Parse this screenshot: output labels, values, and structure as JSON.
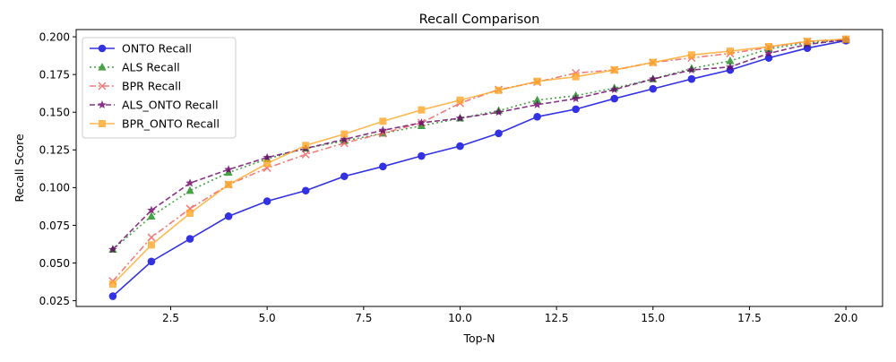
{
  "chart_data": {
    "type": "line",
    "title": "Recall Comparison",
    "xlabel": "Top-N",
    "ylabel": "Recall Score",
    "xlim": [
      0.05,
      20.95
    ],
    "ylim": [
      0.0212,
      0.2048
    ],
    "xticks": [
      2.5,
      5.0,
      7.5,
      10.0,
      12.5,
      15.0,
      17.5,
      20.0
    ],
    "xtick_labels": [
      "2.5",
      "5.0",
      "7.5",
      "10.0",
      "12.5",
      "15.0",
      "17.5",
      "20.0"
    ],
    "yticks": [
      0.025,
      0.05,
      0.075,
      0.1,
      0.125,
      0.15,
      0.175,
      0.2
    ],
    "ytick_labels": [
      "0.025",
      "0.050",
      "0.075",
      "0.100",
      "0.125",
      "0.150",
      "0.175",
      "0.200"
    ],
    "grid": false,
    "legend_position": "top-left",
    "x": [
      1,
      2,
      3,
      4,
      5,
      6,
      7,
      8,
      9,
      10,
      11,
      12,
      13,
      14,
      15,
      16,
      17,
      18,
      19,
      20
    ],
    "series": [
      {
        "name": "ONTO Recall",
        "color": "#0000dd",
        "marker": "circle",
        "line_style": "solid",
        "values": [
          0.028,
          0.051,
          0.066,
          0.081,
          0.091,
          0.098,
          0.1075,
          0.114,
          0.121,
          0.1275,
          0.136,
          0.147,
          0.152,
          0.159,
          0.1655,
          0.172,
          0.178,
          0.186,
          0.1925,
          0.1975
        ]
      },
      {
        "name": "ALS Recall",
        "color": "#1a8a1a",
        "marker": "triangle",
        "line_style": "dotted",
        "values": [
          0.059,
          0.081,
          0.098,
          0.11,
          0.119,
          0.126,
          0.131,
          0.136,
          0.141,
          0.146,
          0.151,
          0.158,
          0.161,
          0.166,
          0.172,
          0.179,
          0.184,
          0.192,
          0.196,
          0.198
        ]
      },
      {
        "name": "BPR Recall",
        "color": "#f05a5a",
        "marker": "x",
        "line_style": "dashdot",
        "values": [
          0.038,
          0.067,
          0.086,
          0.102,
          0.113,
          0.122,
          0.1295,
          0.136,
          0.143,
          0.156,
          0.165,
          0.17,
          0.176,
          0.178,
          0.183,
          0.186,
          0.189,
          0.193,
          0.197,
          0.198
        ]
      },
      {
        "name": "ALS_ONTO Recall",
        "color": "#6a006a",
        "marker": "star",
        "line_style": "dashed",
        "values": [
          0.059,
          0.085,
          0.103,
          0.112,
          0.12,
          0.126,
          0.132,
          0.138,
          0.143,
          0.146,
          0.15,
          0.155,
          0.159,
          0.165,
          0.172,
          0.178,
          0.18,
          0.189,
          0.195,
          0.198
        ]
      },
      {
        "name": "BPR_ONTO Recall",
        "color": "#ffa726",
        "marker": "square",
        "line_style": "solid",
        "values": [
          0.036,
          0.062,
          0.083,
          0.102,
          0.116,
          0.128,
          0.1355,
          0.144,
          0.1515,
          0.158,
          0.1645,
          0.1705,
          0.1735,
          0.178,
          0.183,
          0.188,
          0.1905,
          0.1935,
          0.197,
          0.1985
        ]
      }
    ]
  }
}
